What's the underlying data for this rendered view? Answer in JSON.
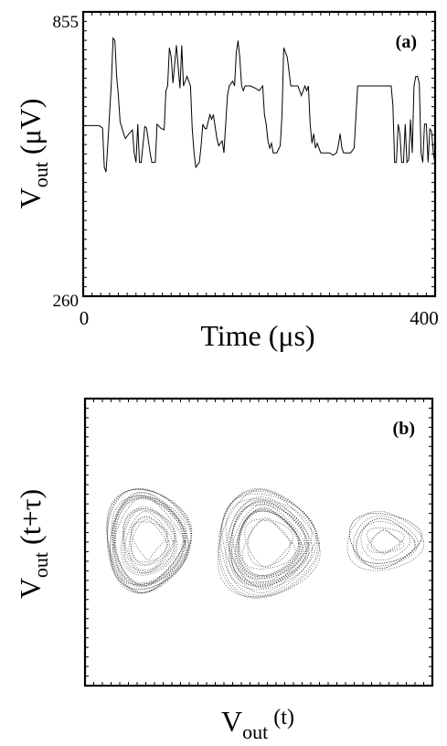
{
  "chart_data": [
    {
      "type": "line",
      "panel_label": "(a)",
      "xlabel": "Time (μs)",
      "ylabel": "V_out (μV)",
      "ylabel_main": "V",
      "ylabel_sub": "out",
      "ylabel_unit": "(μV)",
      "xlim": [
        0,
        400
      ],
      "ylim": [
        260,
        855
      ],
      "x_ticks": [
        "0",
        "400"
      ],
      "y_ticks": [
        "260",
        "855"
      ],
      "series": [
        {
          "x": [
            0,
            18,
            22,
            24,
            26,
            28,
            32,
            34,
            36,
            38,
            40,
            42,
            46,
            48,
            52,
            56,
            58,
            60,
            62,
            64,
            66,
            70,
            72,
            76,
            78,
            82,
            84,
            88,
            92,
            94,
            96,
            98,
            100,
            102,
            106,
            108,
            110,
            112,
            114,
            118,
            122,
            124,
            126,
            128,
            132,
            134,
            136,
            138,
            140,
            144,
            146,
            148,
            152,
            154,
            158,
            160,
            162,
            164,
            166,
            170,
            172,
            174,
            176,
            178,
            180,
            182,
            184,
            190,
            196,
            200,
            204,
            206,
            208,
            210,
            212,
            214,
            216,
            220,
            224,
            226,
            228,
            232,
            236,
            240,
            244,
            248,
            250,
            252,
            254,
            256,
            258,
            260,
            262,
            264,
            266,
            270,
            276,
            280,
            284,
            288,
            290,
            292,
            294,
            296,
            300,
            304,
            308,
            312,
            316,
            318,
            320,
            324,
            328,
            330,
            332,
            334,
            336,
            338,
            340,
            342,
            344,
            346,
            348,
            350,
            352,
            354,
            356,
            358,
            360,
            362,
            364,
            366,
            368,
            370,
            372,
            374,
            376,
            378,
            380,
            382,
            384,
            386,
            388,
            390,
            392,
            394,
            396,
            398,
            400
          ],
          "y": [
            617,
            617,
            612,
            530,
            520,
            580,
            706,
            800,
            795,
            720,
            680,
            625,
            600,
            590,
            600,
            608,
            560,
            540,
            620,
            540,
            540,
            615,
            612,
            560,
            540,
            540,
            620,
            612,
            608,
            690,
            700,
            780,
            760,
            706,
            785,
            740,
            695,
            785,
            700,
            720,
            700,
            610,
            560,
            530,
            540,
            575,
            620,
            612,
            610,
            640,
            630,
            640,
            590,
            575,
            585,
            560,
            620,
            680,
            700,
            710,
            700,
            770,
            795,
            760,
            700,
            690,
            700,
            700,
            695,
            690,
            700,
            640,
            620,
            585,
            570,
            580,
            560,
            560,
            575,
            640,
            780,
            760,
            700,
            700,
            700,
            680,
            690,
            700,
            690,
            700,
            620,
            580,
            600,
            570,
            580,
            560,
            560,
            560,
            555,
            560,
            575,
            600,
            570,
            560,
            560,
            560,
            570,
            700,
            700,
            700,
            700,
            700,
            700,
            700,
            700,
            700,
            700,
            700,
            700,
            700,
            700,
            700,
            700,
            700,
            660,
            540,
            540,
            620,
            600,
            540,
            540,
            620,
            540,
            545,
            630,
            560,
            700,
            720,
            720,
            705,
            560,
            540,
            620,
            620,
            540,
            610,
            605,
            560,
            535
          ]
        }
      ]
    },
    {
      "type": "scatter",
      "panel_label": "(b)",
      "xlabel": "V_out (t)",
      "ylabel": "V_out (t+τ)",
      "xlabel_main": "V",
      "xlabel_sub": "out",
      "xlabel_arg": "(t)",
      "ylabel_main": "V",
      "ylabel_sub": "out",
      "ylabel_arg": "(t+τ)",
      "xlim": [
        260,
        855
      ],
      "ylim": [
        260,
        855
      ],
      "attractor_lobes": [
        {
          "cx": 370,
          "cy": 560,
          "rx": 75,
          "ry": 110
        },
        {
          "cx": 575,
          "cy": 555,
          "rx": 90,
          "ry": 115
        },
        {
          "cx": 775,
          "cy": 560,
          "rx": 65,
          "ry": 60
        }
      ]
    }
  ]
}
